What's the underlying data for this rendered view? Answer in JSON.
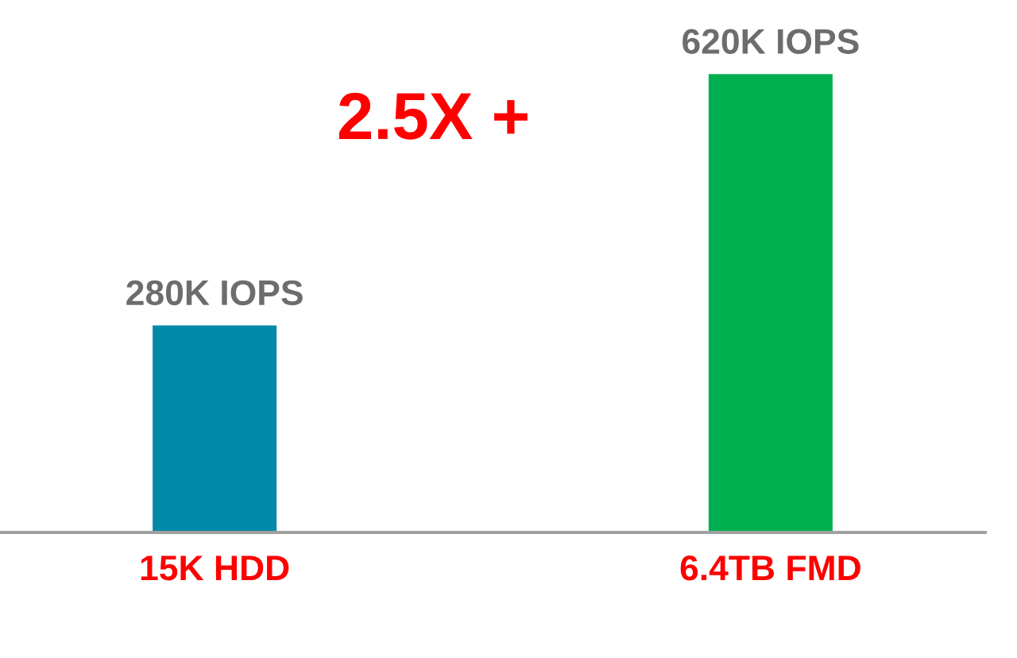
{
  "chart_data": {
    "type": "bar",
    "categories": [
      "15K HDD",
      "6.4TB FMD"
    ],
    "values": [
      280,
      620
    ],
    "colors": [
      "#0089a8",
      "#00b050"
    ],
    "value_labels": [
      "280K IOPS",
      "620K IOPS"
    ],
    "annotations": [
      "2.5X +"
    ]
  }
}
